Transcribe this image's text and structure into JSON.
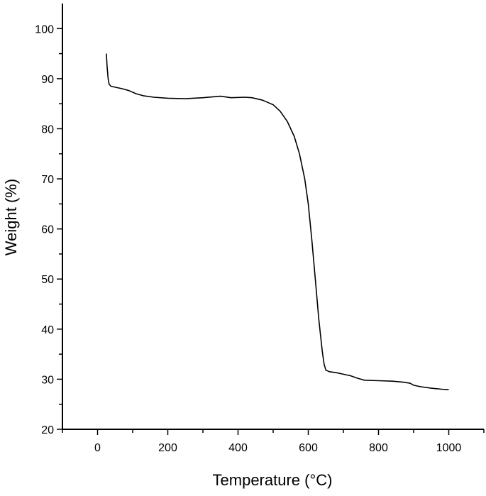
{
  "chart_data": {
    "type": "line",
    "title": "",
    "xlabel": "Temperature (°C)",
    "ylabel": "Weight (%)",
    "xlim": [
      -100,
      1100
    ],
    "ylim": [
      20,
      105
    ],
    "grid": false,
    "legend": "none",
    "x_ticks": [
      "0",
      "200",
      "400",
      "600",
      "800",
      "1000"
    ],
    "y_ticks": [
      "20",
      "30",
      "40",
      "50",
      "60",
      "70",
      "80",
      "90",
      "100"
    ],
    "line_color": "#000000",
    "series": [
      {
        "points": [
          [
            25,
            95.0
          ],
          [
            27,
            92.5
          ],
          [
            30,
            90.0
          ],
          [
            33,
            88.9
          ],
          [
            38,
            88.5
          ],
          [
            50,
            88.3
          ],
          [
            70,
            88.0
          ],
          [
            90,
            87.6
          ],
          [
            110,
            87.0
          ],
          [
            130,
            86.6
          ],
          [
            160,
            86.3
          ],
          [
            200,
            86.1
          ],
          [
            250,
            86.0
          ],
          [
            300,
            86.2
          ],
          [
            350,
            86.5
          ],
          [
            380,
            86.2
          ],
          [
            420,
            86.3
          ],
          [
            440,
            86.2
          ],
          [
            470,
            85.7
          ],
          [
            500,
            84.8
          ],
          [
            520,
            83.5
          ],
          [
            540,
            81.5
          ],
          [
            560,
            78.5
          ],
          [
            575,
            75.0
          ],
          [
            590,
            70.0
          ],
          [
            600,
            65.0
          ],
          [
            610,
            58.0
          ],
          [
            620,
            50.0
          ],
          [
            630,
            42.0
          ],
          [
            640,
            35.5
          ],
          [
            645,
            33.0
          ],
          [
            650,
            31.8
          ],
          [
            660,
            31.5
          ],
          [
            680,
            31.3
          ],
          [
            700,
            31.0
          ],
          [
            720,
            30.7
          ],
          [
            740,
            30.2
          ],
          [
            760,
            29.8
          ],
          [
            800,
            29.7
          ],
          [
            840,
            29.6
          ],
          [
            870,
            29.4
          ],
          [
            890,
            29.2
          ],
          [
            900,
            28.8
          ],
          [
            920,
            28.5
          ],
          [
            950,
            28.2
          ],
          [
            980,
            28.0
          ],
          [
            1000,
            27.9
          ]
        ]
      }
    ]
  }
}
